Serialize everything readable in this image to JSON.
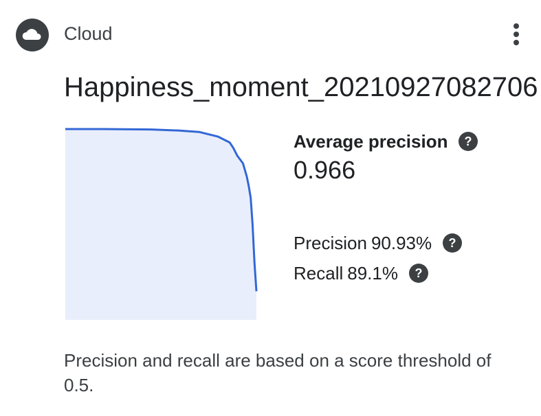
{
  "header": {
    "app_name": "Cloud",
    "app_icon": "cloud-icon",
    "menu_icon": "more-vert-icon"
  },
  "model": {
    "title": "Happiness_moment_20210927082706"
  },
  "metrics": {
    "average_precision_label": "Average precision",
    "average_precision_value": "0.966",
    "precision_label": "Precision",
    "precision_value": "90.93%",
    "recall_label": "Recall",
    "recall_value": "89.1%",
    "help_icon": "help-circle-icon"
  },
  "colors": {
    "curve": "#3367d6",
    "curve_fill": "#e8eefb",
    "icon": "#3c4043"
  },
  "chart_data": {
    "type": "area",
    "x": [
      0.0,
      0.2,
      0.45,
      0.6,
      0.7,
      0.8,
      0.86,
      0.88,
      0.9,
      0.93,
      0.95,
      0.96,
      0.97,
      0.98,
      0.99,
      1.0
    ],
    "y": [
      1.0,
      1.0,
      0.998,
      0.992,
      0.985,
      0.96,
      0.93,
      0.9,
      0.86,
      0.82,
      0.75,
      0.7,
      0.64,
      0.5,
      0.3,
      0.15
    ],
    "xlim": [
      0,
      1
    ],
    "ylim": [
      0,
      1
    ],
    "grid": false
  },
  "footnote": "Precision and recall are based on a score threshold of 0.5."
}
